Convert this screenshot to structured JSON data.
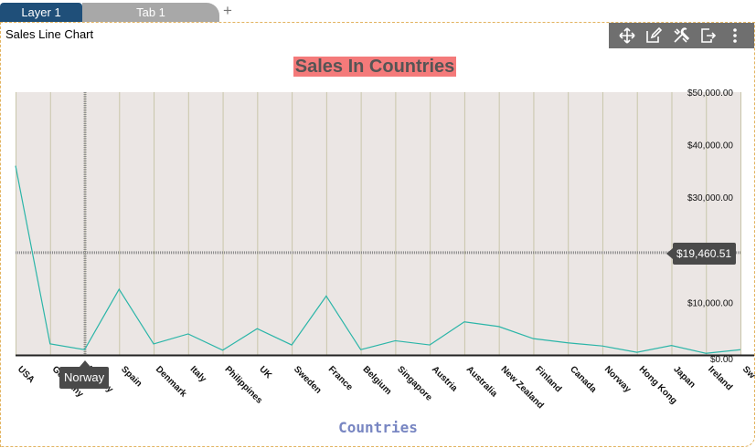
{
  "tabs": [
    {
      "label": "Layer 1"
    },
    {
      "label": "Tab 1"
    }
  ],
  "add_tab_label": "+",
  "widget": {
    "title": "Sales Line Chart",
    "tools": [
      "move-icon",
      "edit-icon",
      "settings-tools-icon",
      "export-icon",
      "more-icon"
    ]
  },
  "colors": {
    "title_bg": "#f47a7a",
    "line": "#2bb5a8",
    "plot_bg": "#ebe6e4",
    "grid": "#c9c6aa"
  },
  "crosshair": {
    "x_label": "Norway",
    "y_label": "$19,460.51"
  },
  "chart_data": {
    "type": "line",
    "title": "Sales In Countries",
    "xlabel": "Countries",
    "ylabel": "",
    "categories": [
      "USA",
      "Germany",
      "Norway",
      "Spain",
      "Denmark",
      "Italy",
      "Philippines",
      "UK",
      "Sweden",
      "France",
      "Belgium",
      "Singapore",
      "Austria",
      "Australia",
      "New Zealand",
      "Finland",
      "Canada",
      "Norway",
      "Hong Kong",
      "Japan",
      "Ireland",
      "Sw"
    ],
    "series": [
      {
        "values": [
          36000,
          2100,
          1000,
          12500,
          2100,
          4000,
          900,
          5000,
          1900,
          11200,
          1000,
          2700,
          1900,
          6300,
          5400,
          3100,
          2300,
          1700,
          500,
          1800,
          300,
          1000
        ]
      }
    ],
    "ylim": [
      0,
      50000
    ],
    "yticks": [
      "$0.00",
      "$10,000.00",
      "$20,000.00",
      "$30,000.00",
      "$40,000.00",
      "$50,000.00"
    ],
    "ytick_values": [
      0,
      10000,
      20000,
      30000,
      40000,
      50000
    ],
    "y_axis_position": "right",
    "grid": true
  }
}
